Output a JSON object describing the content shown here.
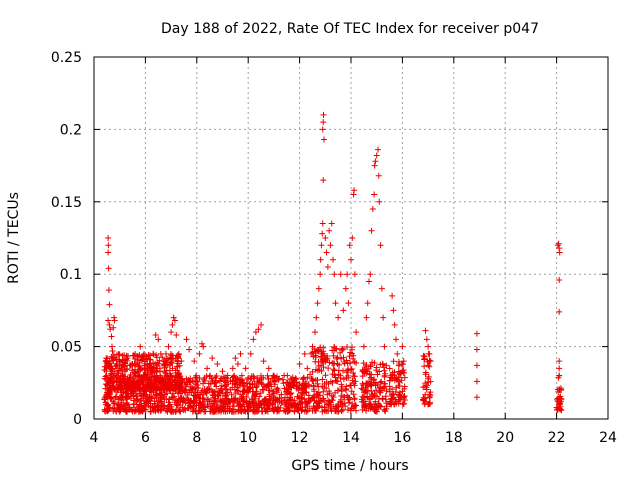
{
  "chart_data": {
    "type": "scatter",
    "title": "Day 188 of 2022, Rate Of TEC Index for receiver p047",
    "xlabel": "GPS time / hours",
    "ylabel": "ROTI / TECUs",
    "xlim": [
      4,
      24
    ],
    "ylim": [
      0,
      0.25
    ],
    "x_ticks": [
      "4",
      "6",
      "8",
      "10",
      "12",
      "14",
      "16",
      "18",
      "20",
      "22",
      "24"
    ],
    "y_ticks": [
      "0",
      "0.05",
      "0.1",
      "0.15",
      "0.2",
      "0.25"
    ],
    "grid": true,
    "marker": "+",
    "color": "#ee0000",
    "series": [
      {
        "name": "ROTI",
        "points": [
          [
            4.55,
            0.125
          ],
          [
            4.56,
            0.12
          ],
          [
            4.55,
            0.115
          ],
          [
            4.57,
            0.104
          ],
          [
            4.58,
            0.089
          ],
          [
            4.6,
            0.079
          ],
          [
            4.55,
            0.068
          ],
          [
            4.6,
            0.065
          ],
          [
            4.63,
            0.062
          ],
          [
            4.68,
            0.057
          ],
          [
            4.7,
            0.05
          ],
          [
            4.72,
            0.047
          ],
          [
            4.75,
            0.063
          ],
          [
            4.78,
            0.07
          ],
          [
            4.8,
            0.068
          ],
          [
            4.45,
            0.04
          ],
          [
            4.5,
            0.035
          ],
          [
            4.6,
            0.04
          ],
          [
            4.7,
            0.035
          ],
          [
            4.85,
            0.03
          ],
          [
            5.0,
            0.035
          ],
          [
            5.1,
            0.03
          ],
          [
            5.2,
            0.033
          ],
          [
            5.3,
            0.028
          ],
          [
            5.5,
            0.038
          ],
          [
            5.6,
            0.045
          ],
          [
            5.7,
            0.033
          ],
          [
            5.8,
            0.05
          ],
          [
            5.9,
            0.042
          ],
          [
            6.1,
            0.035
          ],
          [
            6.2,
            0.038
          ],
          [
            6.3,
            0.045
          ],
          [
            6.4,
            0.058
          ],
          [
            6.5,
            0.055
          ],
          [
            6.6,
            0.045
          ],
          [
            6.7,
            0.04
          ],
          [
            6.8,
            0.045
          ],
          [
            6.9,
            0.05
          ],
          [
            7.0,
            0.06
          ],
          [
            7.05,
            0.065
          ],
          [
            7.1,
            0.07
          ],
          [
            7.15,
            0.068
          ],
          [
            7.2,
            0.058
          ],
          [
            7.3,
            0.045
          ],
          [
            7.4,
            0.04
          ],
          [
            7.6,
            0.055
          ],
          [
            7.7,
            0.048
          ],
          [
            7.9,
            0.04
          ],
          [
            8.1,
            0.045
          ],
          [
            8.2,
            0.052
          ],
          [
            8.25,
            0.05
          ],
          [
            8.4,
            0.035
          ],
          [
            8.6,
            0.042
          ],
          [
            8.8,
            0.038
          ],
          [
            9.0,
            0.033
          ],
          [
            9.2,
            0.03
          ],
          [
            9.4,
            0.035
          ],
          [
            9.5,
            0.042
          ],
          [
            9.6,
            0.038
          ],
          [
            9.7,
            0.045
          ],
          [
            9.9,
            0.035
          ],
          [
            10.1,
            0.045
          ],
          [
            10.2,
            0.055
          ],
          [
            10.3,
            0.06
          ],
          [
            10.4,
            0.062
          ],
          [
            10.5,
            0.065
          ],
          [
            10.6,
            0.04
          ],
          [
            10.8,
            0.035
          ],
          [
            11.0,
            0.03
          ],
          [
            11.2,
            0.028
          ],
          [
            11.4,
            0.03
          ],
          [
            11.6,
            0.025
          ],
          [
            11.8,
            0.027
          ],
          [
            12.0,
            0.038
          ],
          [
            12.2,
            0.045
          ],
          [
            12.3,
            0.035
          ],
          [
            12.45,
            0.045
          ],
          [
            12.5,
            0.05
          ],
          [
            12.6,
            0.06
          ],
          [
            12.65,
            0.07
          ],
          [
            12.7,
            0.08
          ],
          [
            12.75,
            0.09
          ],
          [
            12.8,
            0.1
          ],
          [
            12.82,
            0.11
          ],
          [
            12.85,
            0.12
          ],
          [
            12.88,
            0.128
          ],
          [
            12.9,
            0.135
          ],
          [
            12.92,
            0.165
          ],
          [
            12.95,
            0.193
          ],
          [
            12.9,
            0.2
          ],
          [
            12.92,
            0.205
          ],
          [
            12.93,
            0.21
          ],
          [
            13.0,
            0.125
          ],
          [
            13.05,
            0.115
          ],
          [
            13.1,
            0.105
          ],
          [
            13.15,
            0.13
          ],
          [
            13.2,
            0.12
          ],
          [
            13.25,
            0.135
          ],
          [
            13.3,
            0.11
          ],
          [
            13.35,
            0.1
          ],
          [
            13.4,
            0.08
          ],
          [
            13.5,
            0.07
          ],
          [
            13.6,
            0.1
          ],
          [
            13.7,
            0.075
          ],
          [
            13.8,
            0.09
          ],
          [
            13.85,
            0.1
          ],
          [
            13.9,
            0.08
          ],
          [
            13.95,
            0.12
          ],
          [
            14.0,
            0.11
          ],
          [
            14.05,
            0.125
          ],
          [
            14.1,
            0.155
          ],
          [
            14.12,
            0.158
          ],
          [
            14.15,
            0.1
          ],
          [
            14.2,
            0.06
          ],
          [
            14.5,
            0.05
          ],
          [
            14.6,
            0.07
          ],
          [
            14.65,
            0.08
          ],
          [
            14.7,
            0.095
          ],
          [
            14.75,
            0.1
          ],
          [
            14.8,
            0.13
          ],
          [
            14.85,
            0.145
          ],
          [
            14.9,
            0.155
          ],
          [
            14.92,
            0.175
          ],
          [
            14.95,
            0.178
          ],
          [
            15.0,
            0.182
          ],
          [
            15.05,
            0.186
          ],
          [
            15.08,
            0.168
          ],
          [
            15.1,
            0.15
          ],
          [
            15.15,
            0.12
          ],
          [
            15.2,
            0.09
          ],
          [
            15.25,
            0.07
          ],
          [
            15.3,
            0.05
          ],
          [
            15.6,
            0.085
          ],
          [
            15.65,
            0.075
          ],
          [
            15.7,
            0.065
          ],
          [
            15.75,
            0.055
          ],
          [
            15.8,
            0.045
          ],
          [
            16.0,
            0.05
          ],
          [
            16.05,
            0.04
          ],
          [
            16.9,
            0.061
          ],
          [
            16.95,
            0.055
          ],
          [
            17.0,
            0.05
          ],
          [
            17.05,
            0.045
          ],
          [
            17.1,
            0.04
          ],
          [
            18.9,
            0.059
          ],
          [
            18.9,
            0.048
          ],
          [
            18.9,
            0.037
          ],
          [
            18.9,
            0.026
          ],
          [
            18.9,
            0.015
          ],
          [
            22.05,
            0.12
          ],
          [
            22.08,
            0.121
          ],
          [
            22.1,
            0.118
          ],
          [
            22.12,
            0.115
          ],
          [
            22.1,
            0.096
          ],
          [
            22.1,
            0.074
          ],
          [
            22.1,
            0.04
          ],
          [
            22.1,
            0.035
          ],
          [
            22.1,
            0.03
          ],
          [
            22.12,
            0.02
          ],
          [
            22.1,
            0.015
          ],
          [
            22.1,
            0.01
          ],
          [
            22.12,
            0.007
          ]
        ],
        "dense_bands": [
          {
            "x_range": [
              4.4,
              12.4
            ],
            "y_range": [
              0.005,
              0.03
            ]
          },
          {
            "x_range": [
              4.4,
              7.4
            ],
            "y_range": [
              0.02,
              0.045
            ]
          },
          {
            "x_range": [
              12.4,
              14.2
            ],
            "y_range": [
              0.005,
              0.05
            ]
          },
          {
            "x_range": [
              14.4,
              15.4
            ],
            "y_range": [
              0.005,
              0.04
            ]
          },
          {
            "x_range": [
              15.5,
              16.1
            ],
            "y_range": [
              0.01,
              0.04
            ]
          },
          {
            "x_range": [
              16.8,
              17.1
            ],
            "y_range": [
              0.01,
              0.045
            ]
          },
          {
            "x_range": [
              22.0,
              22.2
            ],
            "y_range": [
              0.005,
              0.03
            ]
          }
        ]
      }
    ]
  }
}
